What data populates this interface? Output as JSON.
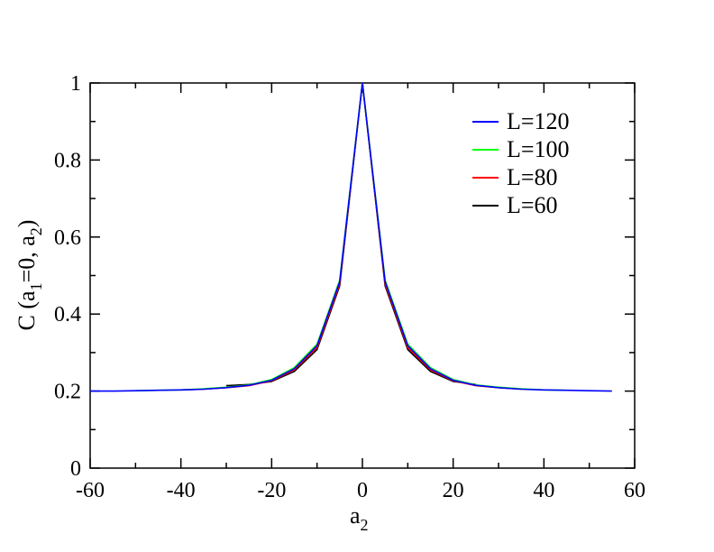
{
  "chart_data": {
    "type": "line",
    "title": "",
    "xlabel": {
      "main": "a",
      "sub": "2"
    },
    "ylabel": {
      "prefix": "C (a",
      "sub1": "1",
      "middle": "=0, a",
      "sub2": "2",
      "suffix": ")"
    },
    "xlim": [
      -60,
      60
    ],
    "ylim": [
      0,
      1
    ],
    "x_ticks": [
      -60,
      -40,
      -20,
      0,
      20,
      40,
      60
    ],
    "y_ticks": [
      0,
      0.2,
      0.4,
      0.6,
      0.8,
      1
    ],
    "x_tick_labels": [
      "-60",
      "-40",
      "-20",
      "0",
      "20",
      "40",
      "60"
    ],
    "y_tick_labels": [
      "0",
      "0.2",
      "0.4",
      "0.6",
      "0.8",
      "1"
    ],
    "grid": false,
    "legend_position": "top-right",
    "series": [
      {
        "name": "L=120",
        "color": "#0000ff",
        "x": [
          -60,
          -55,
          -50,
          -45,
          -40,
          -35,
          -30,
          -25,
          -20,
          -15,
          -10,
          -5,
          0,
          5,
          10,
          15,
          20,
          25,
          30,
          35,
          40,
          45,
          50,
          55
        ],
        "y": [
          0.2,
          0.2,
          0.201,
          0.202,
          0.203,
          0.205,
          0.209,
          0.215,
          0.228,
          0.258,
          0.318,
          0.484,
          1.0,
          0.484,
          0.318,
          0.258,
          0.228,
          0.215,
          0.209,
          0.205,
          0.203,
          0.202,
          0.201,
          0.2
        ]
      },
      {
        "name": "L=100",
        "color": "#00ff00",
        "x": [
          -50,
          -45,
          -40,
          -35,
          -30,
          -25,
          -20,
          -15,
          -10,
          -5,
          0,
          5,
          10,
          15,
          20,
          25,
          30,
          35,
          40,
          45
        ],
        "y": [
          0.201,
          0.202,
          0.203,
          0.206,
          0.21,
          0.216,
          0.23,
          0.261,
          0.322,
          0.488,
          1.0,
          0.488,
          0.322,
          0.261,
          0.23,
          0.216,
          0.21,
          0.206,
          0.203,
          0.202
        ]
      },
      {
        "name": "L=80",
        "color": "#ff0000",
        "x": [
          -40,
          -35,
          -30,
          -25,
          -20,
          -15,
          -10,
          -5,
          0,
          5,
          10,
          15,
          20,
          25,
          30,
          35
        ],
        "y": [
          0.203,
          0.205,
          0.209,
          0.214,
          0.227,
          0.255,
          0.313,
          0.478,
          1.0,
          0.478,
          0.313,
          0.255,
          0.227,
          0.214,
          0.209,
          0.205
        ]
      },
      {
        "name": "L=60",
        "color": "#000000",
        "x": [
          -30,
          -25,
          -20,
          -15,
          -10,
          -5,
          0,
          5,
          10,
          15,
          20,
          25
        ],
        "y": [
          0.214,
          0.217,
          0.225,
          0.251,
          0.308,
          0.473,
          1.0,
          0.473,
          0.308,
          0.251,
          0.225,
          0.217
        ]
      }
    ]
  }
}
